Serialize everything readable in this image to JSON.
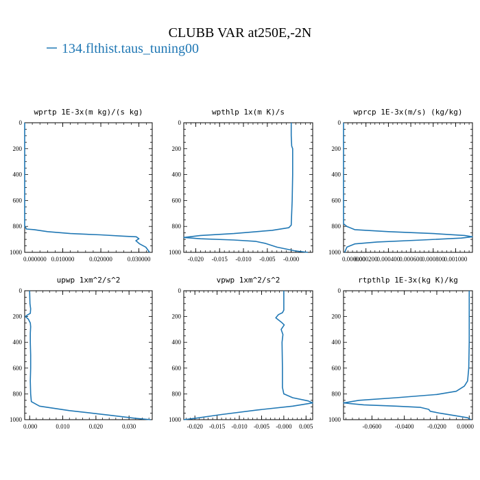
{
  "figure": {
    "title": "CLUBB VAR at250E,-2N",
    "legend_label": "134.flthist.taus_tuning00",
    "line_color": "#1f77b4"
  },
  "chart_data": [
    {
      "type": "line",
      "title": "wprtp  1E-3x(m kg)/(s kg)",
      "xlim": [
        0.0,
        0.0335
      ],
      "ylim": [
        1000,
        0
      ],
      "xticks": [
        0.0,
        0.01,
        0.02,
        0.03
      ],
      "xtick_labels": [
        "0.000000",
        "0.010000",
        "0.020000",
        "0.030000"
      ],
      "yticks": [
        0,
        200,
        400,
        600,
        800,
        1000
      ],
      "series": [
        {
          "x": [
            0.0,
            0.0,
            0.0,
            0.0,
            0.0,
            0.0,
            0.0,
            0.0003,
            0.0004,
            0.0025,
            0.006,
            0.012,
            0.02,
            0.026,
            0.0293,
            0.03,
            0.0292,
            0.0302,
            0.0318,
            0.0328
          ],
          "y": [
            0,
            200,
            400,
            600,
            700,
            780,
            800,
            810,
            820,
            825,
            840,
            855,
            865,
            875,
            880,
            895,
            910,
            935,
            960,
            1000
          ]
        }
      ]
    },
    {
      "type": "line",
      "title": "wpthlp  1x(m K)/s",
      "xlim": [
        -0.0225,
        0.0045
      ],
      "ylim": [
        1000,
        0
      ],
      "xticks": [
        -0.02,
        -0.015,
        -0.01,
        -0.005,
        0.0
      ],
      "xtick_labels": [
        "-0.020",
        "-0.015",
        "-0.010",
        "-0.005",
        "-0.000"
      ],
      "yticks": [
        0,
        200,
        400,
        600,
        800,
        1000
      ],
      "series": [
        {
          "x": [
            0.0,
            0.0,
            0.0001,
            0.0003,
            0.0003,
            0.0002,
            0.0,
            -0.0005,
            -0.004,
            -0.012,
            -0.019,
            -0.0225,
            -0.019,
            -0.012,
            -0.0075,
            -0.0055,
            -0.003,
            0.001,
            0.0035
          ],
          "y": [
            0,
            100,
            180,
            200,
            400,
            600,
            790,
            810,
            830,
            855,
            870,
            885,
            895,
            905,
            915,
            930,
            960,
            990,
            1000
          ]
        }
      ]
    },
    {
      "type": "line",
      "title": "wprcp  1E-3x(m/s) (kg/kg)",
      "xlim": [
        0.0,
        0.00115
      ],
      "ylim": [
        1000,
        0
      ],
      "xticks": [
        0.0,
        0.0002,
        0.0004,
        0.0006,
        0.0008,
        0.001
      ],
      "xtick_labels": [
        "0.000000",
        "0.000200",
        "0.000400",
        "0.000600",
        "0.000800",
        "0.001000"
      ],
      "yticks": [
        0,
        200,
        400,
        600,
        800,
        1000
      ],
      "series": [
        {
          "x": [
            0.0,
            0.0,
            0.0,
            0.0,
            3e-05,
            0.0001,
            0.0004,
            0.0008,
            0.00108,
            0.00115,
            0.00105,
            0.0007,
            0.0003,
            0.0001,
            3e-05,
            1e-05
          ],
          "y": [
            0,
            400,
            600,
            780,
            800,
            825,
            840,
            855,
            870,
            880,
            890,
            905,
            920,
            935,
            960,
            1000
          ]
        }
      ]
    },
    {
      "type": "line",
      "title": "upwp  1xm^2/s^2",
      "xlim": [
        -0.0015,
        0.037
      ],
      "ylim": [
        1000,
        0
      ],
      "xticks": [
        0.0,
        0.01,
        0.02,
        0.03
      ],
      "xtick_labels": [
        "0.000",
        "0.010",
        "0.020",
        "0.030"
      ],
      "yticks": [
        0,
        200,
        400,
        600,
        800,
        1000
      ],
      "series": [
        {
          "x": [
            0.0,
            0.0001,
            0.0003,
            0.0002,
            -0.0008,
            -0.0013,
            -0.0004,
            0.0002,
            0.0003,
            0.0002,
            0.0002,
            0.0003,
            0.0003,
            0.0002,
            0.0003,
            0.0005,
            0.003,
            0.012,
            0.024,
            0.032,
            0.0365
          ],
          "y": [
            0,
            100,
            140,
            175,
            190,
            200,
            220,
            250,
            280,
            330,
            400,
            500,
            600,
            700,
            800,
            860,
            895,
            930,
            965,
            990,
            1000
          ]
        }
      ]
    },
    {
      "type": "line",
      "title": "vpwp  1xm^2/s^2",
      "xlim": [
        -0.0225,
        0.0065
      ],
      "ylim": [
        1000,
        0
      ],
      "xticks": [
        -0.02,
        -0.015,
        -0.01,
        -0.005,
        0.0,
        0.005
      ],
      "xtick_labels": [
        "-0.020",
        "-0.015",
        "-0.010",
        "-0.005",
        "-0.000",
        "0.005"
      ],
      "yticks": [
        0,
        200,
        400,
        600,
        800,
        1000
      ],
      "series": [
        {
          "x": [
            0.0,
            0.0,
            -0.0003,
            -0.0012,
            -0.0018,
            -0.0005,
            0.0001,
            -0.0006,
            -0.0002,
            -0.0004,
            -0.0003,
            -0.0003,
            0.0,
            0.002,
            0.0055,
            0.0065,
            0.002,
            -0.006,
            -0.014,
            -0.02,
            -0.0225
          ],
          "y": [
            0,
            150,
            170,
            185,
            210,
            245,
            265,
            300,
            340,
            400,
            600,
            750,
            800,
            830,
            855,
            870,
            895,
            925,
            960,
            990,
            1000
          ]
        }
      ]
    },
    {
      "type": "line",
      "title": "rtpthlp  1E-3x(kg K)/kg",
      "xlim": [
        -0.0775,
        0.002
      ],
      "ylim": [
        1000,
        0
      ],
      "xticks": [
        -0.06,
        -0.04,
        -0.02,
        0.0
      ],
      "xtick_labels": [
        "-0.0600",
        "-0.0400",
        "-0.0200",
        "0.0000"
      ],
      "yticks": [
        0,
        200,
        400,
        600,
        800,
        1000
      ],
      "series": [
        {
          "x": [
            0.0,
            0.0,
            0.0,
            -0.0003,
            -0.001,
            -0.003,
            -0.008,
            -0.02,
            -0.045,
            -0.068,
            -0.0775,
            -0.065,
            -0.045,
            -0.03,
            -0.025,
            -0.024,
            -0.018,
            -0.008,
            -0.001,
            0.001
          ],
          "y": [
            0,
            200,
            400,
            600,
            700,
            740,
            780,
            805,
            830,
            850,
            870,
            885,
            895,
            905,
            920,
            935,
            950,
            970,
            985,
            1000
          ]
        }
      ]
    }
  ]
}
